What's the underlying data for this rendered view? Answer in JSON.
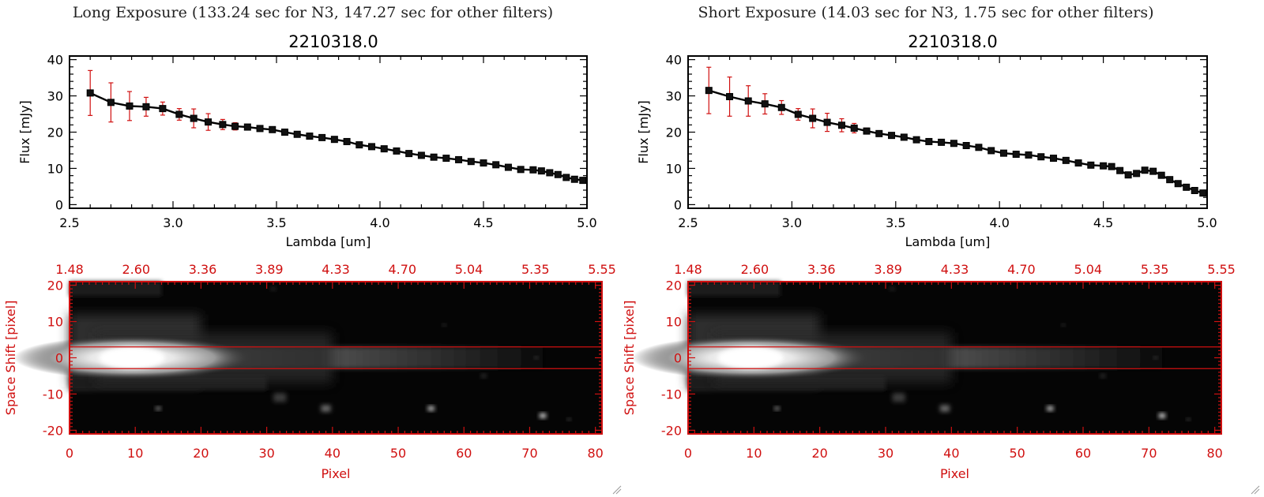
{
  "panels": [
    {
      "caption": "Long Exposure (133.24 sec for N3, 147.27 sec for other filters)",
      "chart_data": {
        "type": "line",
        "title": "2210318.0",
        "xlabel": "Lambda [um]",
        "ylabel": "Flux [mJy]",
        "xlim": [
          2.5,
          5.0
        ],
        "ylim": [
          -1,
          41
        ],
        "xticks": [
          "2.5",
          "3.0",
          "3.5",
          "4.0",
          "4.5",
          "5.0"
        ],
        "yticks": [
          "0",
          "10",
          "20",
          "30",
          "40"
        ],
        "series": [
          {
            "x": [
              2.6,
              2.7,
              2.79,
              2.87,
              2.95,
              3.03,
              3.1,
              3.17,
              3.24,
              3.3,
              3.36,
              3.42,
              3.48,
              3.54,
              3.6,
              3.66,
              3.72,
              3.78,
              3.84,
              3.9,
              3.96,
              4.02,
              4.08,
              4.14,
              4.2,
              4.26,
              4.32,
              4.38,
              4.44,
              4.5,
              4.56,
              4.62,
              4.68,
              4.74,
              4.78,
              4.82,
              4.86,
              4.9,
              4.94,
              4.98
            ],
            "y": [
              30.8,
              28.2,
              27.2,
              27.0,
              26.5,
              24.9,
              23.8,
              22.8,
              22.1,
              21.6,
              21.4,
              21.0,
              20.7,
              20.0,
              19.4,
              18.9,
              18.5,
              18.0,
              17.4,
              16.5,
              16.0,
              15.4,
              14.8,
              14.1,
              13.6,
              13.1,
              12.8,
              12.4,
              11.9,
              11.5,
              11.0,
              10.3,
              9.7,
              9.6,
              9.3,
              8.8,
              8.3,
              7.5,
              7.0,
              6.7
            ],
            "yerr": [
              6.2,
              5.4,
              4.0,
              2.6,
              1.8,
              1.6,
              2.6,
              2.3,
              1.4,
              1.0,
              0.6,
              0.5,
              0.5,
              0.4,
              0.4,
              0.4,
              0.4,
              0.4,
              0.4,
              0.4,
              0.4,
              0.4,
              0.4,
              0.4,
              0.4,
              0.4,
              0.4,
              0.4,
              0.4,
              0.4,
              0.4,
              0.4,
              0.4,
              0.4,
              0.4,
              0.4,
              0.4,
              0.4,
              0.4,
              0.4
            ]
          }
        ]
      },
      "image_data": {
        "xlabel": "Pixel",
        "ylabel": "Space Shift [pixel]",
        "xlim": [
          0,
          81
        ],
        "ylim": [
          -21,
          21
        ],
        "xticks": [
          "0",
          "10",
          "20",
          "30",
          "40",
          "50",
          "60",
          "70",
          "80"
        ],
        "yticks": [
          "20",
          "10",
          "0",
          "-10",
          "-20"
        ],
        "top_ticks": [
          "1.48",
          "2.60",
          "3.36",
          "3.89",
          "4.33",
          "4.70",
          "5.04",
          "5.35",
          "5.55"
        ],
        "aperture_lines": [
          3,
          -3
        ]
      }
    },
    {
      "caption": "Short Exposure (14.03 sec for N3, 1.75 sec for other filters)",
      "chart_data": {
        "type": "line",
        "title": "2210318.0",
        "xlabel": "Lambda [um]",
        "ylabel": "Flux [mJy]",
        "xlim": [
          2.5,
          5.0
        ],
        "ylim": [
          -1,
          41
        ],
        "xticks": [
          "2.5",
          "3.0",
          "3.5",
          "4.0",
          "4.5",
          "5.0"
        ],
        "yticks": [
          "0",
          "10",
          "20",
          "30",
          "40"
        ],
        "series": [
          {
            "x": [
              2.6,
              2.7,
              2.79,
              2.87,
              2.95,
              3.03,
              3.1,
              3.17,
              3.24,
              3.3,
              3.36,
              3.42,
              3.48,
              3.54,
              3.6,
              3.66,
              3.72,
              3.78,
              3.84,
              3.9,
              3.96,
              4.02,
              4.08,
              4.14,
              4.2,
              4.26,
              4.32,
              4.38,
              4.44,
              4.5,
              4.54,
              4.58,
              4.62,
              4.66,
              4.7,
              4.74,
              4.78,
              4.82,
              4.86,
              4.9,
              4.94,
              4.98
            ],
            "y": [
              31.5,
              29.8,
              28.6,
              27.8,
              26.8,
              24.9,
              23.8,
              22.7,
              21.9,
              21.1,
              20.3,
              19.6,
              19.1,
              18.6,
              17.9,
              17.4,
              17.2,
              16.9,
              16.3,
              15.8,
              14.9,
              14.2,
              13.9,
              13.7,
              13.2,
              12.8,
              12.2,
              11.5,
              10.9,
              10.7,
              10.5,
              9.4,
              8.2,
              8.6,
              9.5,
              9.2,
              8.1,
              6.9,
              5.8,
              4.8,
              3.9,
              3.2
            ],
            "yerr": [
              6.4,
              5.4,
              4.2,
              2.8,
              1.9,
              1.6,
              2.6,
              2.5,
              1.8,
              1.3,
              0.8,
              0.5,
              0.5,
              0.4,
              0.4,
              0.4,
              0.4,
              0.4,
              0.4,
              0.4,
              0.4,
              0.4,
              0.4,
              0.4,
              0.4,
              0.4,
              0.4,
              0.4,
              0.4,
              0.4,
              0.4,
              0.4,
              0.4,
              0.4,
              0.4,
              0.4,
              0.4,
              0.4,
              0.4,
              0.4,
              0.4,
              0.4
            ]
          }
        ]
      },
      "image_data": {
        "xlabel": "Pixel",
        "ylabel": "Space Shift [pixel]",
        "xlim": [
          0,
          81
        ],
        "ylim": [
          -21,
          21
        ],
        "xticks": [
          "0",
          "10",
          "20",
          "30",
          "40",
          "50",
          "60",
          "70",
          "80"
        ],
        "yticks": [
          "20",
          "10",
          "0",
          "-10",
          "-20"
        ],
        "top_ticks": [
          "1.48",
          "2.60",
          "3.36",
          "3.89",
          "4.33",
          "4.70",
          "5.04",
          "5.35",
          "5.55"
        ],
        "aperture_lines": [
          3,
          -3
        ]
      }
    }
  ]
}
